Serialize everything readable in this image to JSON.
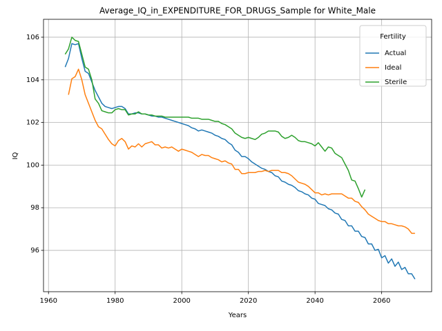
{
  "chart_data": {
    "type": "line",
    "title": "Average_IQ_in_EXPENDITURE_FOR_DRUGS_Sample for White_Male",
    "x_label": "Years",
    "y_label": "IQ",
    "x": [
      1965,
      1966,
      1967,
      1968,
      1969,
      1970,
      1971,
      1972,
      1973,
      1974,
      1975,
      1976,
      1977,
      1978,
      1979,
      1980,
      1981,
      1982,
      1983,
      1984,
      1985,
      1986,
      1987,
      1988,
      1989,
      1990,
      1991,
      1992,
      1993,
      1994,
      1995,
      1996,
      1997,
      1998,
      1999,
      2000,
      2001,
      2002,
      2003,
      2004,
      2005,
      2006,
      2007,
      2008,
      2009,
      2010,
      2011,
      2012,
      2013,
      2014,
      2015,
      2016,
      2017,
      2018,
      2019,
      2020,
      2021,
      2022,
      2023,
      2024,
      2025,
      2026,
      2027,
      2028,
      2029,
      2030,
      2031,
      2032,
      2033,
      2034,
      2035,
      2036,
      2037,
      2038,
      2039,
      2040,
      2041,
      2042,
      2043,
      2044,
      2045,
      2046,
      2047,
      2048,
      2049,
      2050,
      2051,
      2052,
      2053,
      2054,
      2055,
      2056,
      2057,
      2058,
      2059,
      2060,
      2061,
      2062,
      2063,
      2064,
      2065,
      2066,
      2067,
      2068,
      2069,
      2070
    ],
    "series": [
      {
        "name": "Actual",
        "color": "#1f77b4",
        "values": [
          104.6,
          105.0,
          105.7,
          105.65,
          105.7,
          105.0,
          104.4,
          104.3,
          103.9,
          103.5,
          103.2,
          102.9,
          102.75,
          102.7,
          102.65,
          102.7,
          102.75,
          102.75,
          102.65,
          102.4,
          102.4,
          102.45,
          102.45,
          102.4,
          102.4,
          102.35,
          102.3,
          102.3,
          102.25,
          102.25,
          102.2,
          102.15,
          102.1,
          102.05,
          102.0,
          101.95,
          101.9,
          101.85,
          101.75,
          101.7,
          101.6,
          101.65,
          101.6,
          101.55,
          101.5,
          101.4,
          101.35,
          101.25,
          101.2,
          101.05,
          100.95,
          100.7,
          100.6,
          100.4,
          100.4,
          100.3,
          100.15,
          100.05,
          99.95,
          99.85,
          99.8,
          99.7,
          99.65,
          99.5,
          99.45,
          99.25,
          99.2,
          99.1,
          99.05,
          98.95,
          98.8,
          98.75,
          98.65,
          98.6,
          98.45,
          98.4,
          98.2,
          98.15,
          98.1,
          97.95,
          97.9,
          97.75,
          97.7,
          97.45,
          97.4,
          97.15,
          97.15,
          96.9,
          96.9,
          96.65,
          96.6,
          96.3,
          96.3,
          96.0,
          96.05,
          95.65,
          95.75,
          95.4,
          95.6,
          95.25,
          95.45,
          95.1,
          95.2,
          94.9,
          94.9,
          94.65
        ]
      },
      {
        "name": "Ideal",
        "color": "#ff7f0e",
        "values": [
          null,
          103.3,
          104.05,
          104.15,
          104.5,
          104.0,
          103.3,
          102.9,
          102.5,
          102.1,
          101.8,
          101.7,
          101.45,
          101.2,
          101.0,
          100.9,
          101.15,
          101.25,
          101.1,
          100.75,
          100.9,
          100.85,
          101.0,
          100.85,
          101.0,
          101.05,
          101.1,
          100.95,
          100.95,
          100.8,
          100.85,
          100.8,
          100.85,
          100.75,
          100.65,
          100.75,
          100.7,
          100.65,
          100.6,
          100.5,
          100.4,
          100.5,
          100.45,
          100.45,
          100.35,
          100.3,
          100.25,
          100.15,
          100.2,
          100.1,
          100.05,
          99.8,
          99.8,
          99.6,
          99.6,
          99.65,
          99.65,
          99.65,
          99.7,
          99.7,
          99.75,
          99.7,
          99.75,
          99.75,
          99.75,
          99.65,
          99.65,
          99.6,
          99.5,
          99.35,
          99.2,
          99.15,
          99.1,
          99.0,
          98.85,
          98.7,
          98.7,
          98.6,
          98.65,
          98.6,
          98.65,
          98.65,
          98.65,
          98.65,
          98.55,
          98.45,
          98.45,
          98.3,
          98.25,
          98.05,
          97.9,
          97.7,
          97.6,
          97.5,
          97.4,
          97.35,
          97.35,
          97.25,
          97.25,
          97.2,
          97.15,
          97.15,
          97.1,
          97.0,
          96.8,
          96.8
        ]
      },
      {
        "name": "Sterile",
        "color": "#2ca02c",
        "values": [
          105.2,
          105.45,
          106.0,
          105.85,
          105.8,
          105.2,
          104.6,
          104.5,
          104.0,
          103.1,
          102.9,
          102.55,
          102.5,
          102.45,
          102.45,
          102.6,
          102.65,
          102.6,
          102.6,
          102.35,
          102.4,
          102.4,
          102.5,
          102.4,
          102.4,
          102.35,
          102.35,
          102.3,
          102.3,
          102.3,
          102.25,
          102.25,
          102.25,
          102.25,
          102.25,
          102.25,
          102.25,
          102.25,
          102.2,
          102.2,
          102.2,
          102.15,
          102.15,
          102.15,
          102.1,
          102.05,
          102.05,
          101.95,
          101.9,
          101.8,
          101.7,
          101.5,
          101.4,
          101.3,
          101.25,
          101.3,
          101.25,
          101.2,
          101.3,
          101.45,
          101.5,
          101.6,
          101.6,
          101.6,
          101.55,
          101.35,
          101.25,
          101.3,
          101.4,
          101.3,
          101.15,
          101.1,
          101.1,
          101.05,
          101.0,
          100.9,
          101.05,
          100.85,
          100.65,
          100.85,
          100.8,
          100.55,
          100.45,
          100.35,
          100.05,
          99.75,
          99.3,
          99.25,
          98.9,
          98.5,
          98.85,
          null,
          null,
          null,
          null,
          null,
          null,
          null,
          null,
          null,
          null,
          null,
          null,
          null,
          null,
          null
        ]
      }
    ],
    "xlim": [
      1958.5,
      2075
    ],
    "ylim": [
      94.06,
      106.84
    ],
    "xticks": [
      1960,
      1980,
      2000,
      2020,
      2040,
      2060
    ],
    "yticks": [
      96,
      98,
      100,
      102,
      104,
      106
    ],
    "grid": true,
    "legend_title": "Fertility",
    "legend_position": "upper right"
  }
}
